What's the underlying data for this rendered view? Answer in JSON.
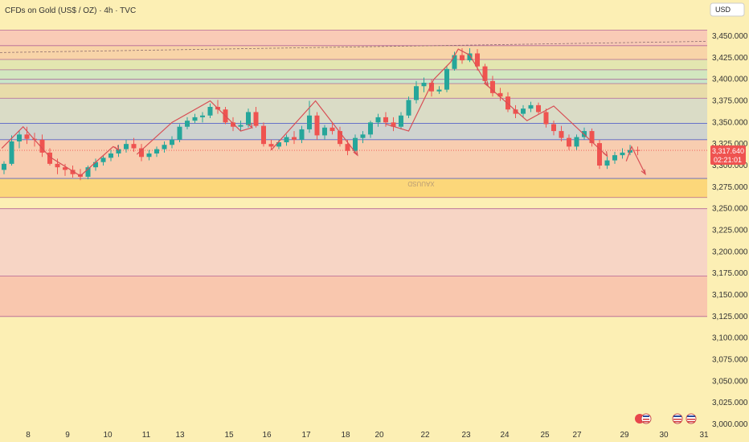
{
  "header": {
    "title": "CFDs on Gold (US$ / OZ) · 4h · TVC",
    "currency": "USD"
  },
  "watermark": "XAUUSD",
  "price_label": {
    "price": "3,317.640",
    "countdown": "02:21:01"
  },
  "colors": {
    "background": "#fcefb4",
    "up": "#26a69a",
    "down": "#ef5350",
    "arrow": "#d84f55",
    "trendline": "#8e6e6e",
    "bull_line": "#4a58c9",
    "bear_line": "#a44a8f"
  },
  "chart_data": {
    "type": "candlestick",
    "title": "CFDs on Gold (US$ / OZ) · 4h · TVC",
    "y_ticks": [
      3450,
      3425,
      3400,
      3375,
      3350,
      3325,
      3300,
      3275,
      3250,
      3225,
      3200,
      3175,
      3150,
      3125,
      3100,
      3075,
      3050,
      3025,
      3000
    ],
    "y_tick_labels": [
      "3,450.000",
      "3,425.000",
      "3,400.000",
      "3,375.000",
      "3,350.000",
      "3,325.000",
      "3,300.000",
      "3,275.000",
      "3,250.000",
      "3,225.000",
      "3,200.000",
      "3,175.000",
      "3,150.000",
      "3,125.000",
      "3,100.000",
      "3,075.000",
      "3,050.000",
      "3,025.000",
      "3,000.000"
    ],
    "ylim": [
      3000,
      3450
    ],
    "x_tick_labels": [
      "8",
      "9",
      "10",
      "11",
      "13",
      "15",
      "16",
      "17",
      "18",
      "20",
      "22",
      "23",
      "24",
      "25",
      "27",
      "29",
      "30",
      "31"
    ],
    "zones": [
      {
        "from": 3439,
        "to": 3457,
        "color": "#f9cbb6"
      },
      {
        "from": 3423,
        "to": 3439,
        "color": "#f8d4a8"
      },
      {
        "from": 3411,
        "to": 3423,
        "color": "#e3e6b0"
      },
      {
        "from": 3400,
        "to": 3411,
        "color": "#d2e7bf"
      },
      {
        "from": 3395,
        "to": 3400,
        "color": "#c9e6c9"
      },
      {
        "from": 3378,
        "to": 3395,
        "color": "#e8dcaa"
      },
      {
        "from": 3349,
        "to": 3378,
        "color": "#dadcc6"
      },
      {
        "from": 3330,
        "to": 3349,
        "color": "#cfd3cf"
      },
      {
        "from": 3285,
        "to": 3330,
        "color": "#f8cdb0"
      },
      {
        "from": 3263,
        "to": 3285,
        "color": "#fcd77a"
      },
      {
        "from": 3172,
        "to": 3250,
        "color": "#f7d5c5"
      },
      {
        "from": 3125,
        "to": 3172,
        "color": "#f9c7ae"
      }
    ],
    "bull_levels": [
      3349,
      3330,
      3285
    ],
    "bear_levels": [
      3457,
      3439,
      3423,
      3411,
      3400,
      3395,
      3378,
      3263,
      3250,
      3172,
      3125
    ],
    "candles": [
      {
        "o": 3295,
        "h": 3305,
        "l": 3290,
        "c": 3302
      },
      {
        "o": 3302,
        "h": 3335,
        "l": 3300,
        "c": 3328
      },
      {
        "o": 3328,
        "h": 3340,
        "l": 3320,
        "c": 3336
      },
      {
        "o": 3336,
        "h": 3345,
        "l": 3325,
        "c": 3331
      },
      {
        "o": 3331,
        "h": 3338,
        "l": 3322,
        "c": 3330
      },
      {
        "o": 3330,
        "h": 3336,
        "l": 3310,
        "c": 3315
      },
      {
        "o": 3315,
        "h": 3320,
        "l": 3300,
        "c": 3302
      },
      {
        "o": 3302,
        "h": 3308,
        "l": 3290,
        "c": 3298
      },
      {
        "o": 3298,
        "h": 3302,
        "l": 3288,
        "c": 3295
      },
      {
        "o": 3295,
        "h": 3300,
        "l": 3286,
        "c": 3290
      },
      {
        "o": 3290,
        "h": 3296,
        "l": 3283,
        "c": 3287
      },
      {
        "o": 3287,
        "h": 3300,
        "l": 3284,
        "c": 3298
      },
      {
        "o": 3298,
        "h": 3308,
        "l": 3294,
        "c": 3304
      },
      {
        "o": 3304,
        "h": 3312,
        "l": 3300,
        "c": 3309
      },
      {
        "o": 3309,
        "h": 3318,
        "l": 3305,
        "c": 3314
      },
      {
        "o": 3314,
        "h": 3324,
        "l": 3310,
        "c": 3319
      },
      {
        "o": 3319,
        "h": 3330,
        "l": 3315,
        "c": 3325
      },
      {
        "o": 3325,
        "h": 3332,
        "l": 3316,
        "c": 3320
      },
      {
        "o": 3320,
        "h": 3325,
        "l": 3305,
        "c": 3310
      },
      {
        "o": 3310,
        "h": 3318,
        "l": 3306,
        "c": 3314
      },
      {
        "o": 3314,
        "h": 3322,
        "l": 3310,
        "c": 3319
      },
      {
        "o": 3319,
        "h": 3328,
        "l": 3315,
        "c": 3324
      },
      {
        "o": 3324,
        "h": 3334,
        "l": 3320,
        "c": 3330
      },
      {
        "o": 3330,
        "h": 3348,
        "l": 3327,
        "c": 3345
      },
      {
        "o": 3345,
        "h": 3356,
        "l": 3342,
        "c": 3352
      },
      {
        "o": 3352,
        "h": 3360,
        "l": 3349,
        "c": 3356
      },
      {
        "o": 3356,
        "h": 3362,
        "l": 3350,
        "c": 3358
      },
      {
        "o": 3358,
        "h": 3372,
        "l": 3355,
        "c": 3368
      },
      {
        "o": 3368,
        "h": 3376,
        "l": 3360,
        "c": 3365
      },
      {
        "o": 3365,
        "h": 3368,
        "l": 3348,
        "c": 3350
      },
      {
        "o": 3350,
        "h": 3356,
        "l": 3340,
        "c": 3345
      },
      {
        "o": 3345,
        "h": 3352,
        "l": 3340,
        "c": 3347
      },
      {
        "o": 3347,
        "h": 3366,
        "l": 3344,
        "c": 3362
      },
      {
        "o": 3362,
        "h": 3368,
        "l": 3344,
        "c": 3346
      },
      {
        "o": 3346,
        "h": 3350,
        "l": 3322,
        "c": 3325
      },
      {
        "o": 3325,
        "h": 3330,
        "l": 3318,
        "c": 3322
      },
      {
        "o": 3322,
        "h": 3330,
        "l": 3319,
        "c": 3327
      },
      {
        "o": 3327,
        "h": 3336,
        "l": 3323,
        "c": 3333
      },
      {
        "o": 3333,
        "h": 3340,
        "l": 3325,
        "c": 3330
      },
      {
        "o": 3330,
        "h": 3346,
        "l": 3326,
        "c": 3342
      },
      {
        "o": 3342,
        "h": 3375,
        "l": 3338,
        "c": 3358
      },
      {
        "o": 3358,
        "h": 3362,
        "l": 3330,
        "c": 3335
      },
      {
        "o": 3335,
        "h": 3347,
        "l": 3330,
        "c": 3344
      },
      {
        "o": 3344,
        "h": 3350,
        "l": 3336,
        "c": 3340
      },
      {
        "o": 3340,
        "h": 3345,
        "l": 3322,
        "c": 3325
      },
      {
        "o": 3325,
        "h": 3330,
        "l": 3312,
        "c": 3317
      },
      {
        "o": 3317,
        "h": 3336,
        "l": 3314,
        "c": 3332
      },
      {
        "o": 3332,
        "h": 3340,
        "l": 3326,
        "c": 3336
      },
      {
        "o": 3336,
        "h": 3352,
        "l": 3332,
        "c": 3350
      },
      {
        "o": 3350,
        "h": 3360,
        "l": 3345,
        "c": 3356
      },
      {
        "o": 3356,
        "h": 3362,
        "l": 3345,
        "c": 3350
      },
      {
        "o": 3350,
        "h": 3356,
        "l": 3340,
        "c": 3345
      },
      {
        "o": 3345,
        "h": 3362,
        "l": 3342,
        "c": 3358
      },
      {
        "o": 3358,
        "h": 3380,
        "l": 3355,
        "c": 3376
      },
      {
        "o": 3376,
        "h": 3398,
        "l": 3372,
        "c": 3392
      },
      {
        "o": 3392,
        "h": 3402,
        "l": 3385,
        "c": 3396
      },
      {
        "o": 3396,
        "h": 3400,
        "l": 3380,
        "c": 3386
      },
      {
        "o": 3386,
        "h": 3392,
        "l": 3383,
        "c": 3388
      },
      {
        "o": 3388,
        "h": 3416,
        "l": 3385,
        "c": 3412
      },
      {
        "o": 3412,
        "h": 3432,
        "l": 3410,
        "c": 3428
      },
      {
        "o": 3428,
        "h": 3436,
        "l": 3418,
        "c": 3422
      },
      {
        "o": 3422,
        "h": 3436,
        "l": 3420,
        "c": 3430
      },
      {
        "o": 3430,
        "h": 3435,
        "l": 3410,
        "c": 3415
      },
      {
        "o": 3415,
        "h": 3418,
        "l": 3394,
        "c": 3398
      },
      {
        "o": 3398,
        "h": 3404,
        "l": 3380,
        "c": 3384
      },
      {
        "o": 3384,
        "h": 3390,
        "l": 3375,
        "c": 3380
      },
      {
        "o": 3380,
        "h": 3385,
        "l": 3362,
        "c": 3365
      },
      {
        "o": 3365,
        "h": 3370,
        "l": 3355,
        "c": 3360
      },
      {
        "o": 3360,
        "h": 3370,
        "l": 3356,
        "c": 3366
      },
      {
        "o": 3366,
        "h": 3374,
        "l": 3362,
        "c": 3370
      },
      {
        "o": 3370,
        "h": 3373,
        "l": 3360,
        "c": 3362
      },
      {
        "o": 3362,
        "h": 3366,
        "l": 3344,
        "c": 3348
      },
      {
        "o": 3348,
        "h": 3352,
        "l": 3335,
        "c": 3340
      },
      {
        "o": 3340,
        "h": 3346,
        "l": 3328,
        "c": 3332
      },
      {
        "o": 3332,
        "h": 3336,
        "l": 3318,
        "c": 3322
      },
      {
        "o": 3322,
        "h": 3336,
        "l": 3318,
        "c": 3333
      },
      {
        "o": 3333,
        "h": 3344,
        "l": 3330,
        "c": 3340
      },
      {
        "o": 3340,
        "h": 3343,
        "l": 3322,
        "c": 3326
      },
      {
        "o": 3326,
        "h": 3330,
        "l": 3296,
        "c": 3300
      },
      {
        "o": 3300,
        "h": 3310,
        "l": 3296,
        "c": 3306
      },
      {
        "o": 3306,
        "h": 3316,
        "l": 3302,
        "c": 3312
      },
      {
        "o": 3312,
        "h": 3320,
        "l": 3308,
        "c": 3315
      },
      {
        "o": 3315,
        "h": 3324,
        "l": 3312,
        "c": 3318
      },
      {
        "o": 3318,
        "h": 3322,
        "l": 3312,
        "c": 3317
      }
    ],
    "zigzags": [
      [
        [
          -0.3,
          3320
        ],
        [
          2.5,
          3345
        ],
        [
          6,
          3310
        ],
        [
          10,
          3288
        ],
        [
          14.3,
          3322
        ],
        [
          15,
          3318
        ]
      ],
      [
        [
          17.4,
          3313
        ],
        [
          22,
          3350
        ],
        [
          27,
          3375
        ],
        [
          31,
          3340
        ],
        [
          32.5,
          3344
        ]
      ],
      [
        [
          35,
          3318
        ],
        [
          40.8,
          3375
        ],
        [
          46.3,
          3312
        ]
      ],
      [
        [
          50,
          3348
        ],
        [
          53,
          3340
        ],
        [
          56.3,
          3400
        ],
        [
          58.5,
          3420
        ],
        [
          59.5,
          3435
        ],
        [
          61,
          3428
        ],
        [
          63.4,
          3392
        ]
      ],
      [
        [
          63.4,
          3392
        ],
        [
          68.5,
          3352
        ],
        [
          72,
          3369
        ],
        [
          79,
          3311
        ]
      ],
      [
        [
          81.5,
          3305
        ],
        [
          82.2,
          3322
        ],
        [
          84,
          3290
        ]
      ]
    ],
    "arrowheads": [
      [
        15,
        3318
      ],
      [
        32.5,
        3344
      ],
      [
        46.3,
        3312
      ],
      [
        63.4,
        3392
      ],
      [
        79,
        3311
      ],
      [
        84,
        3290
      ]
    ],
    "trendline": [
      [
        0,
        3431
      ],
      [
        118,
        3444
      ]
    ]
  }
}
